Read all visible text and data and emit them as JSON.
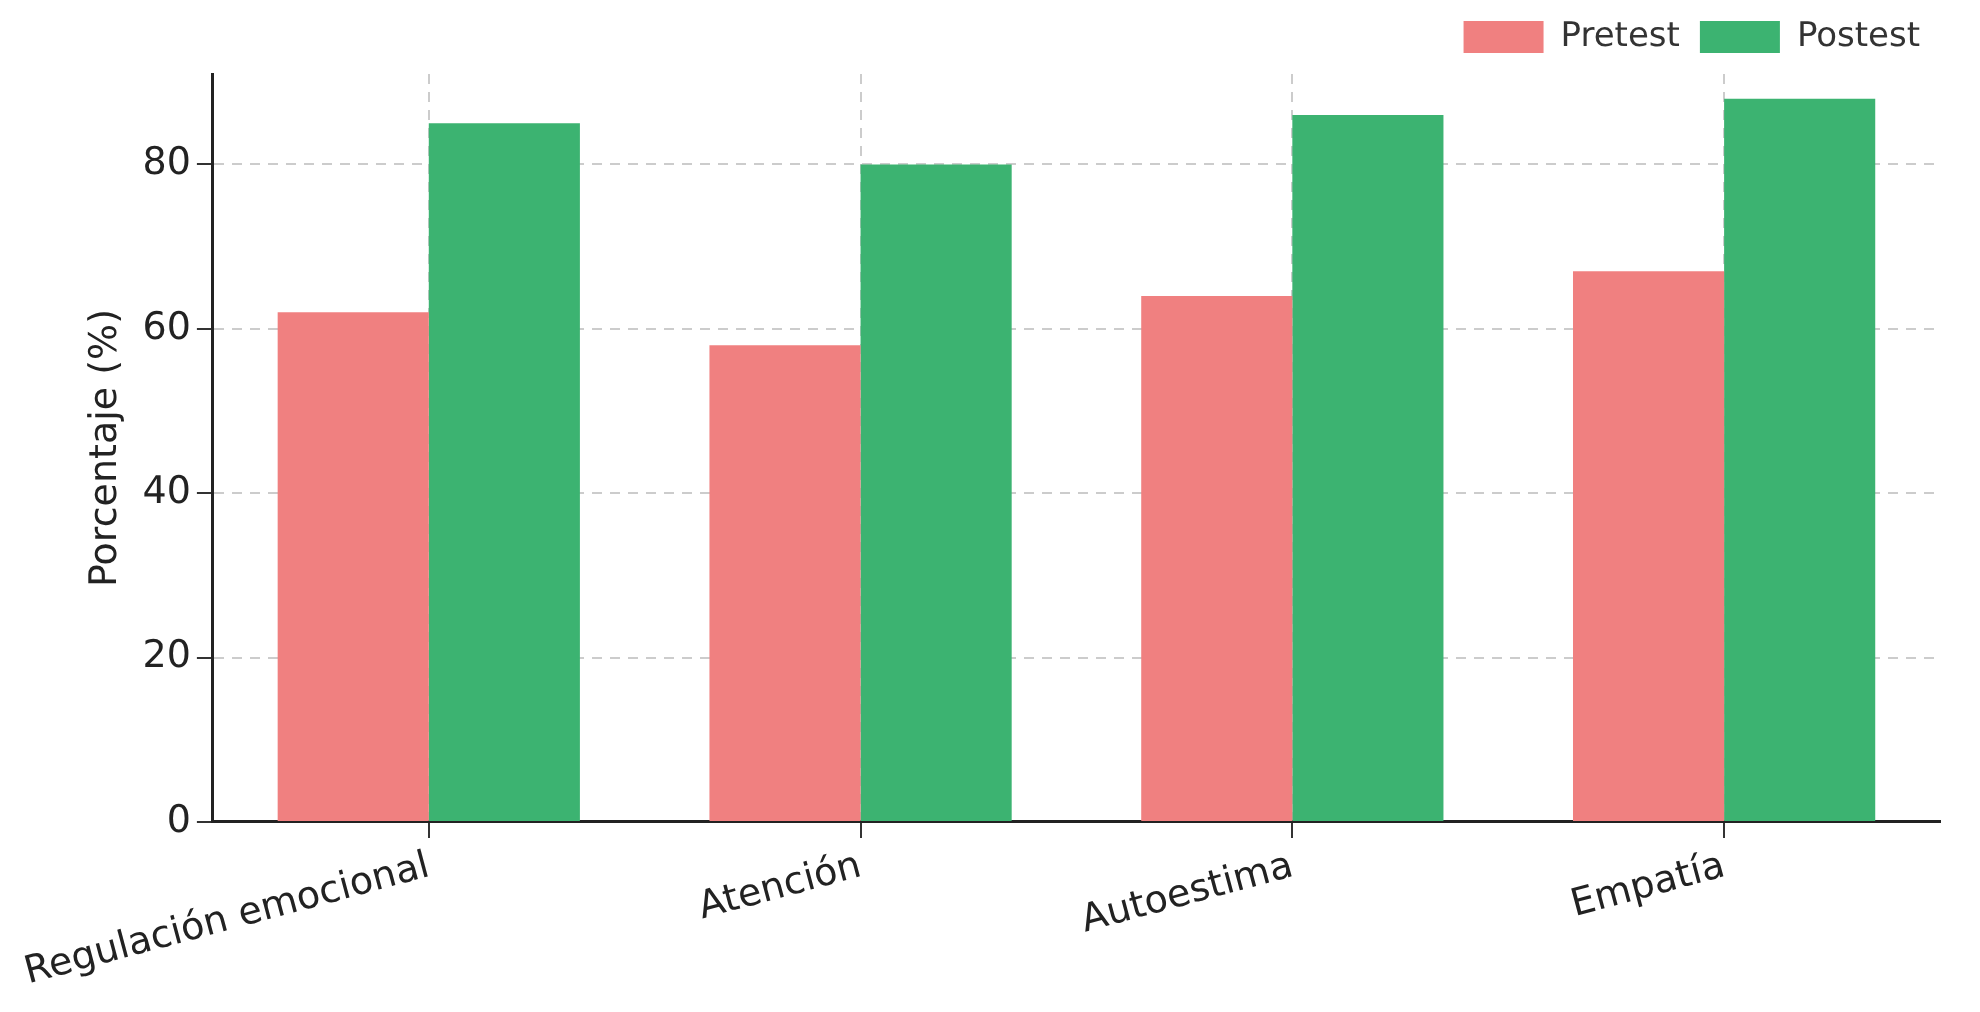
{
  "chart_data": {
    "type": "bar",
    "ylabel": "Porcentaje (%)",
    "categories": [
      "Regulación emocional",
      "Atención",
      "Autoestima",
      "Empatía"
    ],
    "series": [
      {
        "name": "Pretest",
        "color": "#f08080",
        "values": [
          62,
          58,
          64,
          67
        ]
      },
      {
        "name": "Postest",
        "color": "#3cb371",
        "values": [
          85,
          80,
          86,
          88
        ]
      }
    ],
    "ylim": [
      0,
      91
    ],
    "yticks": [
      0,
      20,
      40,
      60,
      80
    ],
    "grid": true,
    "legend": "top right"
  }
}
